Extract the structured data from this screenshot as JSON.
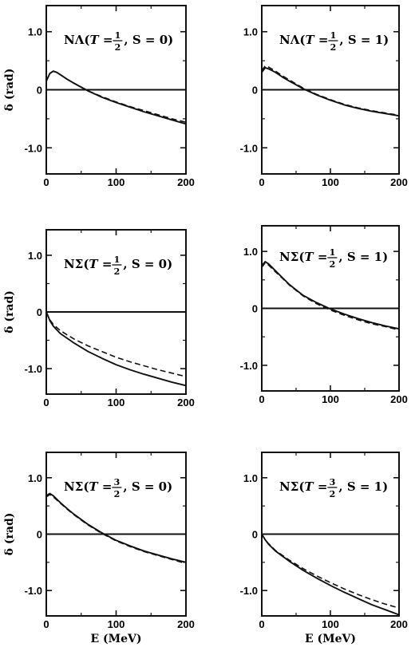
{
  "chart_data": [
    {
      "type": "line",
      "panel": "top-left",
      "label_prefix": "NΛ(",
      "label_T": "T",
      "label_eq": " = ",
      "label_frac_num": "1",
      "label_frac_den": "2",
      "label_suffix": " , S = 0)",
      "xlabel": "",
      "ylabel": "δ (rad)",
      "xlim": [
        0,
        200
      ],
      "ylim": [
        -1.45,
        1.45
      ],
      "xticks": [
        "0",
        "100",
        "200"
      ],
      "yticks": [
        "1.0",
        "0",
        "-1.0"
      ],
      "series": [
        {
          "style": "solid",
          "x": [
            0,
            5,
            10,
            15,
            20,
            30,
            40,
            60,
            80,
            100,
            120,
            140,
            160,
            180,
            200
          ],
          "y": [
            0.15,
            0.28,
            0.32,
            0.3,
            0.26,
            0.18,
            0.11,
            -0.02,
            -0.13,
            -0.22,
            -0.3,
            -0.38,
            -0.45,
            -0.52,
            -0.59
          ]
        },
        {
          "style": "dashed",
          "x": [
            0,
            5,
            10,
            15,
            20,
            30,
            40,
            60,
            80,
            100,
            120,
            140,
            160,
            180,
            200
          ],
          "y": [
            0.15,
            0.28,
            0.32,
            0.3,
            0.26,
            0.18,
            0.11,
            -0.02,
            -0.12,
            -0.21,
            -0.29,
            -0.36,
            -0.43,
            -0.5,
            -0.56
          ]
        },
        {
          "style": "solid",
          "x": [
            0,
            200
          ],
          "y": [
            0,
            0
          ]
        }
      ]
    },
    {
      "type": "line",
      "panel": "top-right",
      "label_prefix": "NΛ(",
      "label_T": "T",
      "label_eq": " = ",
      "label_frac_num": "1",
      "label_frac_den": "2",
      "label_suffix": " , S = 1)",
      "xlabel": "",
      "ylabel": "",
      "xlim": [
        0,
        200
      ],
      "ylim": [
        -1.45,
        1.45
      ],
      "xticks": [
        "0",
        "100",
        "200"
      ],
      "yticks": [
        "1.0",
        "0",
        "-1.0"
      ],
      "series": [
        {
          "style": "solid",
          "x": [
            0,
            5,
            10,
            20,
            30,
            40,
            60,
            80,
            100,
            120,
            140,
            160,
            180,
            200
          ],
          "y": [
            0.3,
            0.38,
            0.36,
            0.3,
            0.22,
            0.15,
            0.02,
            -0.09,
            -0.18,
            -0.26,
            -0.32,
            -0.37,
            -0.41,
            -0.45
          ]
        },
        {
          "style": "dashed",
          "x": [
            0,
            5,
            10,
            20,
            30,
            40,
            60,
            80,
            100,
            120,
            140,
            160,
            180,
            200
          ],
          "y": [
            0.33,
            0.41,
            0.39,
            0.32,
            0.24,
            0.17,
            0.03,
            -0.08,
            -0.17,
            -0.25,
            -0.31,
            -0.36,
            -0.4,
            -0.44
          ]
        },
        {
          "style": "solid",
          "x": [
            0,
            200
          ],
          "y": [
            0,
            0
          ]
        }
      ]
    },
    {
      "type": "line",
      "panel": "middle-left",
      "label_prefix": "NΣ(",
      "label_T": "T",
      "label_eq": " = ",
      "label_frac_num": "1",
      "label_frac_den": "2",
      "label_suffix": " , S = 0)",
      "xlabel": "",
      "ylabel": "δ (rad)",
      "xlim": [
        0,
        200
      ],
      "ylim": [
        -1.45,
        1.45
      ],
      "xticks": [
        "0",
        "100",
        "200"
      ],
      "yticks": [
        "1.0",
        "0",
        "-1.0"
      ],
      "series": [
        {
          "style": "solid",
          "x": [
            0,
            5,
            10,
            20,
            40,
            60,
            80,
            100,
            120,
            140,
            160,
            180,
            200
          ],
          "y": [
            0,
            -0.15,
            -0.25,
            -0.38,
            -0.55,
            -0.7,
            -0.82,
            -0.93,
            -1.02,
            -1.1,
            -1.17,
            -1.24,
            -1.3
          ]
        },
        {
          "style": "dashed",
          "x": [
            0,
            5,
            10,
            20,
            40,
            60,
            80,
            100,
            120,
            140,
            160,
            180,
            200
          ],
          "y": [
            0,
            -0.14,
            -0.22,
            -0.33,
            -0.48,
            -0.6,
            -0.7,
            -0.8,
            -0.88,
            -0.95,
            -1.02,
            -1.08,
            -1.14
          ]
        },
        {
          "style": "solid",
          "x": [
            0,
            200
          ],
          "y": [
            0,
            0
          ]
        }
      ]
    },
    {
      "type": "line",
      "panel": "middle-right",
      "label_prefix": "NΣ(",
      "label_T": "T",
      "label_eq": " = ",
      "label_frac_num": "1",
      "label_frac_den": "2",
      "label_suffix": " , S = 1)",
      "xlabel": "",
      "ylabel": "",
      "xlim": [
        0,
        200
      ],
      "ylim": [
        -1.45,
        1.45
      ],
      "xticks": [
        "0",
        "100",
        "200"
      ],
      "yticks": [
        "1.0",
        "0",
        "-1.0"
      ],
      "series": [
        {
          "style": "solid",
          "x": [
            0,
            5,
            10,
            20,
            30,
            40,
            60,
            80,
            100,
            120,
            140,
            160,
            180,
            200
          ],
          "y": [
            0.75,
            0.82,
            0.78,
            0.66,
            0.54,
            0.42,
            0.23,
            0.1,
            -0.01,
            -0.1,
            -0.18,
            -0.25,
            -0.31,
            -0.36
          ]
        },
        {
          "style": "dashed",
          "x": [
            0,
            5,
            10,
            20,
            30,
            40,
            60,
            80,
            100,
            120,
            140,
            160,
            180,
            200
          ],
          "y": [
            0.72,
            0.8,
            0.76,
            0.64,
            0.53,
            0.41,
            0.22,
            0.08,
            -0.03,
            -0.12,
            -0.2,
            -0.27,
            -0.32,
            -0.38
          ]
        },
        {
          "style": "solid",
          "x": [
            0,
            200
          ],
          "y": [
            0,
            0
          ]
        }
      ]
    },
    {
      "type": "line",
      "panel": "bottom-left",
      "label_prefix": "NΣ(",
      "label_T": "T",
      "label_eq": " = ",
      "label_frac_num": "3",
      "label_frac_den": "2",
      "label_suffix": " , S = 0)",
      "xlabel": "E (MeV)",
      "ylabel": "δ (rad)",
      "xlim": [
        0,
        200
      ],
      "ylim": [
        -1.45,
        1.45
      ],
      "xticks": [
        "0",
        "100",
        "200"
      ],
      "yticks": [
        "1.0",
        "0",
        "-1.0"
      ],
      "series": [
        {
          "style": "solid",
          "x": [
            0,
            5,
            10,
            20,
            30,
            40,
            60,
            80,
            100,
            120,
            140,
            160,
            180,
            200
          ],
          "y": [
            0.68,
            0.72,
            0.68,
            0.56,
            0.45,
            0.35,
            0.17,
            0.02,
            -0.11,
            -0.21,
            -0.3,
            -0.37,
            -0.44,
            -0.5
          ]
        },
        {
          "style": "dashed",
          "x": [
            0,
            5,
            10,
            20,
            30,
            40,
            60,
            80,
            100,
            120,
            140,
            160,
            180,
            200
          ],
          "y": [
            0.66,
            0.7,
            0.66,
            0.55,
            0.44,
            0.34,
            0.16,
            0.01,
            -0.12,
            -0.22,
            -0.31,
            -0.38,
            -0.45,
            -0.52
          ]
        },
        {
          "style": "solid",
          "x": [
            0,
            200
          ],
          "y": [
            0,
            0
          ]
        }
      ]
    },
    {
      "type": "line",
      "panel": "bottom-right",
      "label_prefix": "NΣ(",
      "label_T": "T",
      "label_eq": " = ",
      "label_frac_num": "3",
      "label_frac_den": "2",
      "label_suffix": " , S = 1)",
      "xlabel": "E (MeV)",
      "ylabel": "",
      "xlim": [
        0,
        200
      ],
      "ylim": [
        -1.45,
        1.45
      ],
      "xticks": [
        "0",
        "100",
        "200"
      ],
      "yticks": [
        "1.0",
        "0",
        "-1.0"
      ],
      "series": [
        {
          "style": "solid",
          "x": [
            0,
            5,
            10,
            20,
            40,
            60,
            80,
            100,
            120,
            140,
            160,
            180,
            200
          ],
          "y": [
            0,
            -0.1,
            -0.18,
            -0.3,
            -0.48,
            -0.64,
            -0.78,
            -0.91,
            -1.03,
            -1.14,
            -1.25,
            -1.34,
            -1.43
          ]
        },
        {
          "style": "dashed",
          "x": [
            0,
            5,
            10,
            20,
            40,
            60,
            80,
            100,
            120,
            140,
            160,
            180,
            200
          ],
          "y": [
            0,
            -0.1,
            -0.17,
            -0.29,
            -0.46,
            -0.61,
            -0.74,
            -0.86,
            -0.97,
            -1.07,
            -1.16,
            -1.24,
            -1.31
          ]
        },
        {
          "style": "solid",
          "x": [
            0,
            200
          ],
          "y": [
            0,
            0
          ]
        }
      ]
    }
  ]
}
